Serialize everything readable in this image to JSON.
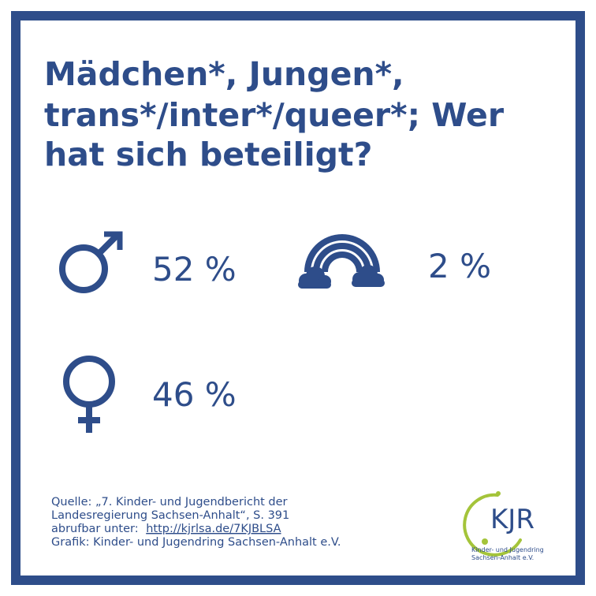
{
  "title": [
    "Mädchen*, Jungen*,",
    "trans*/inter*/queer*; Wer",
    "hat sich beteiligt?"
  ],
  "stats": [
    {
      "label": "52 %"
    },
    {
      "label": "2 %"
    },
    {
      "label": "46 %"
    }
  ],
  "source": {
    "line1": "Quelle: „7. Kinder- und Jugendbericht der",
    "line2": "Landesregierung Sachsen-Anhalt“, S. 391",
    "line3_prefix": "abrufbar unter:",
    "link": "http://kjrlsa.de/7KJBLSA",
    "line4": "Grafik: Kinder- und Jugendring Sachsen-Anhalt e.V."
  },
  "logo": {
    "mark": "KJR",
    "line1": "Kinder- und Jugendring",
    "line2": "Sachsen-Anhalt e.V."
  }
}
